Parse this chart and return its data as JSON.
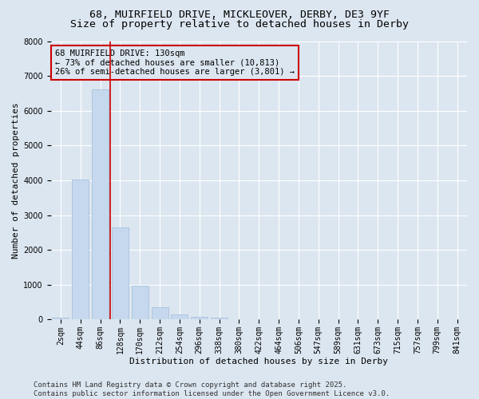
{
  "title_line1": "68, MUIRFIELD DRIVE, MICKLEOVER, DERBY, DE3 9YF",
  "title_line2": "Size of property relative to detached houses in Derby",
  "xlabel": "Distribution of detached houses by size in Derby",
  "ylabel": "Number of detached properties",
  "categories": [
    "2sqm",
    "44sqm",
    "86sqm",
    "128sqm",
    "170sqm",
    "212sqm",
    "254sqm",
    "296sqm",
    "338sqm",
    "380sqm",
    "422sqm",
    "464sqm",
    "506sqm",
    "547sqm",
    "589sqm",
    "631sqm",
    "673sqm",
    "715sqm",
    "757sqm",
    "799sqm",
    "841sqm"
  ],
  "values": [
    60,
    4020,
    6620,
    2650,
    980,
    360,
    150,
    80,
    55,
    0,
    0,
    0,
    0,
    0,
    0,
    0,
    0,
    0,
    0,
    0,
    0
  ],
  "bar_color": "#c5d8ee",
  "bar_edge_color": "#a0bcd8",
  "vline_x_position": 2.5,
  "vline_color": "#cc0000",
  "annotation_box_text": "68 MUIRFIELD DRIVE: 130sqm\n← 73% of detached houses are smaller (10,813)\n26% of semi-detached houses are larger (3,801) →",
  "annotation_box_color": "#cc0000",
  "ylim": [
    0,
    8000
  ],
  "yticks": [
    0,
    1000,
    2000,
    3000,
    4000,
    5000,
    6000,
    7000,
    8000
  ],
  "footer_line1": "Contains HM Land Registry data © Crown copyright and database right 2025.",
  "footer_line2": "Contains public sector information licensed under the Open Government Licence v3.0.",
  "background_color": "#dce6f0",
  "plot_background_color": "#dce6f0",
  "title_fontsize": 9.5,
  "axis_label_fontsize": 8,
  "tick_fontsize": 7,
  "annotation_fontsize": 7.5,
  "footer_fontsize": 6.5
}
